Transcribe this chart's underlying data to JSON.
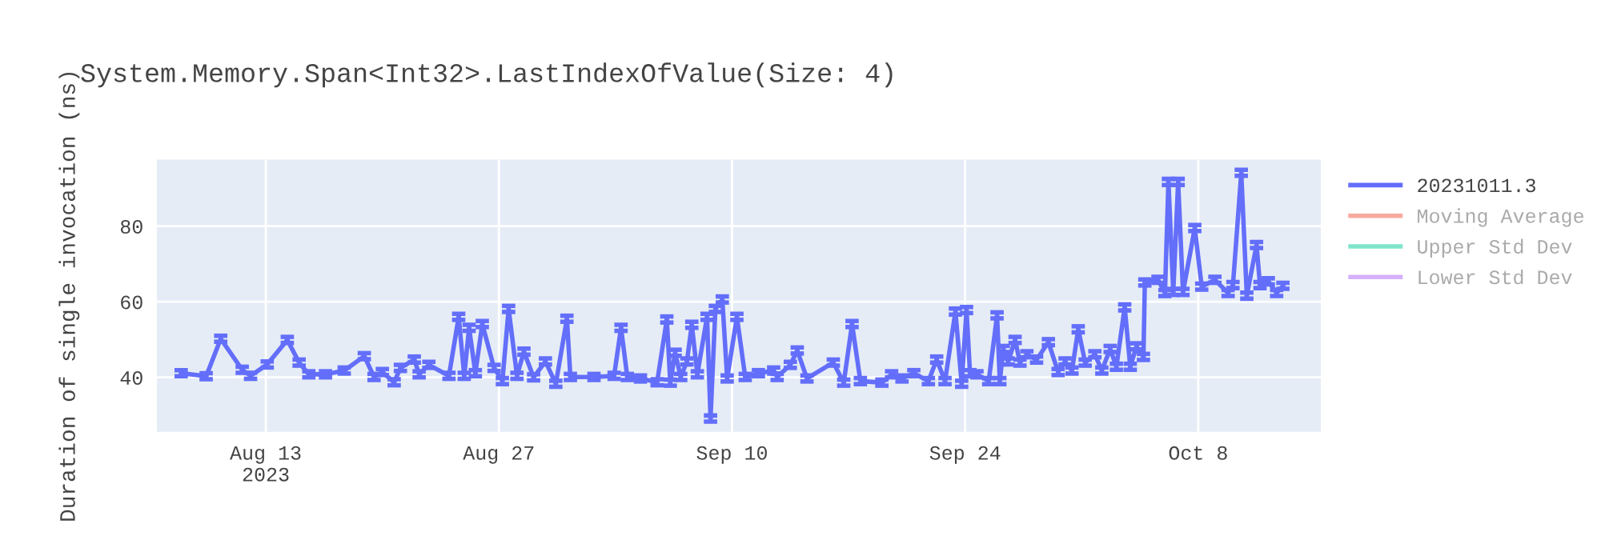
{
  "chart_data": {
    "type": "line",
    "title": "System.Memory.Span<Int32>.LastIndexOfValue(Size: 4)",
    "ylabel": "Duration of single invocation (ns)",
    "xlim": [
      "2023-08-06T11:00",
      "2023-10-15T08:40"
    ],
    "xticks": [
      {
        "value": "2023-08-13",
        "label": "Aug 13\n2023"
      },
      {
        "value": "2023-08-27",
        "label": "Aug 27"
      },
      {
        "value": "2023-09-10",
        "label": "Sep 10"
      },
      {
        "value": "2023-09-24",
        "label": "Sep 24"
      },
      {
        "value": "2023-10-08",
        "label": "Oct 8"
      }
    ],
    "ylim": [
      25.6,
      97.6
    ],
    "yticks": [
      40,
      60,
      80
    ],
    "grid": true,
    "legend": "right",
    "marker": "none",
    "line_style": "solid",
    "series": [
      {
        "name": "20231011.3",
        "color": "#636efa",
        "x": [
          "2023-08-07T22:00",
          "2023-08-09T10:00",
          "2023-08-10T07:00",
          "2023-08-11T14:00",
          "2023-08-12T02:00",
          "2023-08-13T02:00",
          "2023-08-14T07:00",
          "2023-08-15T00:00",
          "2023-08-15T14:00",
          "2023-08-16T14:00",
          "2023-08-17T17:00",
          "2023-08-18T22:00",
          "2023-08-19T12:00",
          "2023-08-20T00:00",
          "2023-08-20T17:00",
          "2023-08-21T02:00",
          "2023-08-21T22:00",
          "2023-08-22T05:00",
          "2023-08-22T19:00",
          "2023-08-24T00:00",
          "2023-08-24T14:00",
          "2023-08-24T22:00",
          "2023-08-25T05:00",
          "2023-08-25T14:00",
          "2023-08-26T00:00",
          "2023-08-26T17:00",
          "2023-08-27T05:00",
          "2023-08-27T14:00",
          "2023-08-28T02:00",
          "2023-08-28T12:00",
          "2023-08-29T02:00",
          "2023-08-29T19:00",
          "2023-08-30T10:00",
          "2023-08-31T02:00",
          "2023-08-31T07:00",
          "2023-09-01T17:00",
          "2023-09-02T22:00",
          "2023-09-03T08:00",
          "2023-09-03T17:00",
          "2023-09-04T12:00",
          "2023-09-05T12:00",
          "2023-09-06T02:00",
          "2023-09-06T07:00",
          "2023-09-06T14:00",
          "2023-09-06T22:00",
          "2023-09-07T07:00",
          "2023-09-07T14:00",
          "2023-09-07T22:00",
          "2023-09-08T12:00",
          "2023-09-08T17:00",
          "2023-09-09T00:00",
          "2023-09-09T10:00",
          "2023-09-09T17:00",
          "2023-09-10T07:00",
          "2023-09-10T19:00",
          "2023-09-11T14:00",
          "2023-09-12T12:00",
          "2023-09-12T17:00",
          "2023-09-13T12:00",
          "2023-09-13T22:00",
          "2023-09-14T12:00",
          "2023-09-16T02:00",
          "2023-09-16T17:00",
          "2023-09-17T05:00",
          "2023-09-17T17:00",
          "2023-09-19T00:00",
          "2023-09-19T14:00",
          "2023-09-20T05:00",
          "2023-09-20T22:00",
          "2023-09-21T19:00",
          "2023-09-22T07:00",
          "2023-09-22T19:00",
          "2023-09-23T10:00",
          "2023-09-23T19:00",
          "2023-09-24T02:00",
          "2023-09-24T07:00",
          "2023-09-24T17:00",
          "2023-09-25T10:00",
          "2023-09-25T22:00",
          "2023-09-26T02:00",
          "2023-09-26T07:00",
          "2023-09-26T14:00",
          "2023-09-27T00:00",
          "2023-09-27T07:00",
          "2023-09-27T17:00",
          "2023-09-28T07:00",
          "2023-09-29T00:00",
          "2023-09-29T14:00",
          "2023-09-30T00:00",
          "2023-09-30T10:00",
          "2023-09-30T19:00",
          "2023-10-01T05:00",
          "2023-10-01T19:00",
          "2023-10-02T05:00",
          "2023-10-02T17:00",
          "2023-10-03T02:00",
          "2023-10-03T14:00",
          "2023-10-03T22:00",
          "2023-10-04T07:00",
          "2023-10-04T17:00",
          "2023-10-04T19:00",
          "2023-10-05T14:00",
          "2023-10-06T00:00",
          "2023-10-06T05:00",
          "2023-10-06T12:00",
          "2023-10-06T19:00",
          "2023-10-07T02:00",
          "2023-10-07T19:00",
          "2023-10-08T05:00",
          "2023-10-09T00:00",
          "2023-10-09T19:00",
          "2023-10-10T02:00",
          "2023-10-10T14:00",
          "2023-10-10T22:00",
          "2023-10-11T12:00",
          "2023-10-11T17:00",
          "2023-10-12T05:00",
          "2023-10-12T17:00",
          "2023-10-13T02:00"
        ],
        "values": [
          41.1,
          40.3,
          50.2,
          42,
          40.4,
          43.4,
          49.9,
          43.9,
          40.8,
          40.8,
          41.8,
          45.6,
          40.1,
          41.4,
          38.7,
          42.5,
          44.7,
          40.8,
          43.3,
          40.4,
          56,
          40.4,
          53.1,
          41.1,
          54.1,
          42.5,
          39,
          58.1,
          40.4,
          46.8,
          40,
          44.2,
          38.3,
          55.5,
          40.1,
          40.1,
          40.4,
          53.1,
          40.1,
          39.7,
          38.7,
          55.3,
          38.6,
          46.5,
          40.1,
          44.2,
          53.9,
          40.8,
          56,
          29.1,
          58.1,
          60.6,
          39.7,
          56,
          40.1,
          41.1,
          41.8,
          40.1,
          43.3,
          47.1,
          39.7,
          43.9,
          38.6,
          54.1,
          39,
          38.6,
          40.8,
          39.7,
          41.1,
          39,
          44.7,
          39,
          57.4,
          38.3,
          57.8,
          41.1,
          40.8,
          39,
          56.4,
          39,
          47.5,
          44.2,
          49.9,
          43.9,
          46.1,
          44.7,
          49.3,
          41.4,
          44.2,
          41.8,
          52.7,
          43.9,
          46.1,
          41.8,
          47.5,
          42.8,
          58.5,
          42.8,
          48.2,
          45.4,
          65.1,
          65.8,
          62.3,
          91.7,
          62.6,
          91.7,
          62.6,
          79.5,
          64,
          65.8,
          62.3,
          64.4,
          94.1,
          61.6,
          75,
          64.4,
          65.4,
          62.3,
          64.2
        ],
        "errors": [
          0.8,
          0.8,
          0.8,
          0.8,
          0.8,
          0.8,
          0.8,
          0.8,
          0.8,
          0.8,
          0.8,
          0.8,
          0.8,
          0.8,
          0.8,
          0.8,
          0.8,
          0.8,
          0.8,
          0.8,
          0.8,
          0.8,
          0.8,
          0.8,
          0.8,
          0.8,
          0.8,
          0.8,
          0.8,
          0.8,
          0.8,
          0.8,
          0.8,
          0.8,
          0.8,
          0.8,
          0.8,
          0.8,
          0.8,
          0.8,
          0.8,
          0.8,
          0.8,
          0.8,
          0.8,
          0.8,
          0.8,
          0.8,
          0.8,
          0.8,
          0.8,
          0.8,
          0.8,
          0.8,
          0.8,
          0.8,
          0.8,
          0.8,
          0.8,
          0.8,
          0.8,
          0.8,
          0.8,
          0.8,
          0.8,
          0.8,
          0.8,
          0.8,
          0.8,
          0.8,
          0.8,
          0.8,
          0.8,
          0.8,
          0.8,
          0.8,
          0.8,
          0.8,
          0.8,
          0.8,
          0.8,
          0.8,
          0.8,
          0.8,
          0.8,
          0.8,
          0.8,
          0.8,
          0.8,
          0.8,
          0.8,
          0.8,
          0.8,
          0.8,
          0.8,
          0.8,
          0.8,
          0.8,
          0.8,
          0.8,
          0.8,
          0.8,
          0.8,
          0.8,
          0.8,
          0.8,
          0.8,
          0.8,
          0.8,
          0.8,
          0.8,
          0.8,
          0.8,
          0.8,
          0.8,
          0.8,
          0.8,
          0.8,
          0.8
        ]
      },
      {
        "name": "Moving Average",
        "color": "#ef553b"
      },
      {
        "name": "Upper Std Dev",
        "color": "#00cc96"
      },
      {
        "name": "Lower Std Dev",
        "color": "#ab63fa"
      }
    ]
  }
}
